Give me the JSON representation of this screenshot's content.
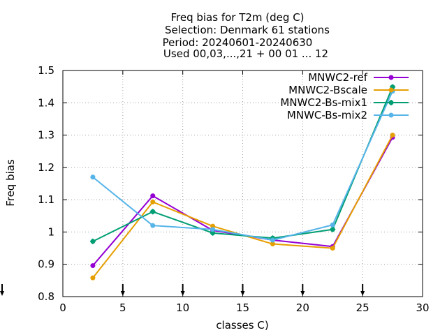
{
  "chart_data": {
    "type": "line",
    "title_lines": [
      "Freq bias  for T2m (deg C)",
      "Selection: Denmark     61 stations",
      "Period: 20240601-20240630",
      "Used 00,03,...,21 + 00 01 ... 12"
    ],
    "xlabel": "classes C)",
    "ylabel": "Freq bias",
    "xlim": [
      0,
      30
    ],
    "ylim": [
      0.8,
      1.5
    ],
    "xticks": [
      0,
      5,
      10,
      15,
      20,
      25,
      30
    ],
    "yticks": [
      0.8,
      0.9,
      1.0,
      1.1,
      1.2,
      1.3,
      1.4,
      1.5
    ],
    "xtick_labels": [
      "0",
      "5",
      "10",
      "15",
      "20",
      "25",
      "30"
    ],
    "ytick_labels": [
      "0.8",
      "0.9",
      "1",
      "1.1",
      "1.2",
      "1.3",
      "1.4",
      "1.5"
    ],
    "grid": true,
    "legend_position": "top-right",
    "x": [
      2.5,
      7.5,
      12.5,
      17.5,
      22.5,
      27.5
    ],
    "bottom_arrow_x": [
      0,
      5,
      10,
      15,
      20,
      25
    ],
    "series": [
      {
        "name": "MNWC2-ref",
        "color": "#9400d3",
        "values": [
          0.896,
          1.112,
          1.005,
          0.975,
          0.955,
          1.293
        ]
      },
      {
        "name": "MNWC2-Bscale",
        "color": "#e69f00",
        "values": [
          0.858,
          1.093,
          1.018,
          0.963,
          0.95,
          1.3
        ]
      },
      {
        "name": "MNWC2-Bs-mix1",
        "color": "#009e73",
        "values": [
          0.971,
          1.063,
          0.997,
          0.981,
          1.008,
          1.449
        ]
      },
      {
        "name": "MNWC-Bs-mix2",
        "color": "#56b4e9",
        "values": [
          1.17,
          1.02,
          1.008,
          0.975,
          1.022,
          1.436
        ]
      }
    ]
  }
}
